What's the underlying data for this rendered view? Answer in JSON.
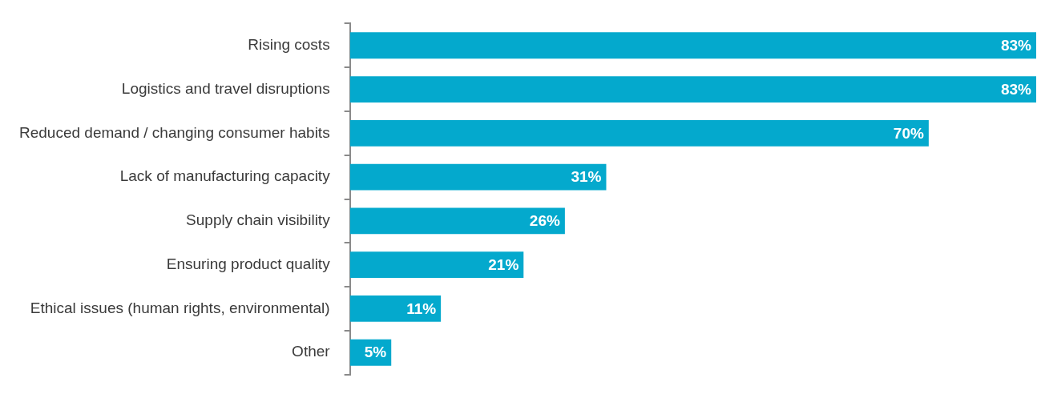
{
  "chart_data": {
    "type": "bar",
    "orientation": "horizontal",
    "tick_labels": "y",
    "legend": false,
    "categories": [
      "Rising costs",
      "Logistics and travel disruptions",
      "Reduced demand / changing consumer habits",
      "Lack of manufacturing capacity",
      "Supply chain visibility",
      "Ensuring product quality",
      "Ethical issues (human rights, environmental)",
      "Other"
    ],
    "values": [
      83,
      83,
      70,
      31,
      26,
      21,
      11,
      5
    ],
    "value_labels": [
      "83%",
      "83%",
      "70%",
      "31%",
      "26%",
      "21%",
      "11%",
      "5%"
    ],
    "color": "#04a9cd"
  }
}
